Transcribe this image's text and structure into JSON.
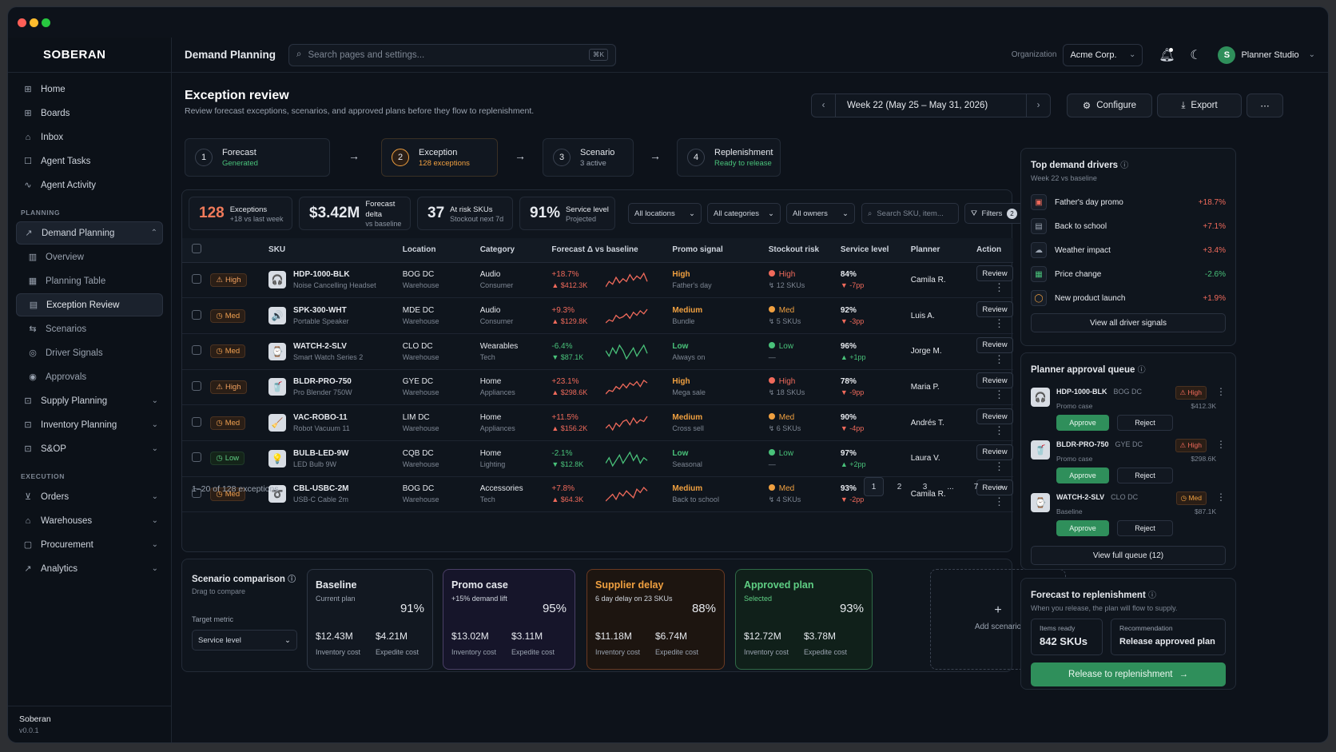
{
  "app": {
    "brand": "SOBERAN",
    "footer_name": "Soberan",
    "footer_version": "v0.0.1"
  },
  "nav": {
    "home": "Home",
    "boards": "Boards",
    "inbox": "Inbox",
    "agent_tasks": "Agent Tasks",
    "agent_activity": "Agent Activity",
    "planning_section": "PLANNING",
    "demand_planning": "Demand Planning",
    "overview": "Overview",
    "planning_table": "Planning Table",
    "exception_review": "Exception Review",
    "scenarios": "Scenarios",
    "driver_signals": "Driver Signals",
    "approvals": "Approvals",
    "supply_planning": "Supply Planning",
    "inventory_planning": "Inventory Planning",
    "sop": "S&OP",
    "execution_section": "EXECUTION",
    "orders": "Orders",
    "warehouses": "Warehouses",
    "procurement": "Procurement",
    "analytics": "Analytics"
  },
  "topbar": {
    "title": "Demand Planning",
    "search_placeholder": "Search pages and settings...",
    "search_kbd": "⌘K",
    "org_label": "Organization",
    "org_value": "Acme Corp.",
    "avatar_letter": "S",
    "user": "Planner Studio"
  },
  "page": {
    "title": "Exception review",
    "subtitle": "Review forecast exceptions, scenarios, and approved plans before they flow to replenishment.",
    "week": "Week 22 (May 25 – May 31, 2026)",
    "configure": "Configure",
    "export": "Export"
  },
  "steps": [
    {
      "num": "1",
      "title": "Forecast",
      "status": "Generated",
      "color": "#49c27a"
    },
    {
      "num": "2",
      "title": "Exception",
      "status": "128 exceptions",
      "color": "#f0a040"
    },
    {
      "num": "3",
      "title": "Scenario",
      "status": "3 active",
      "color": "#9aa3b0"
    },
    {
      "num": "4",
      "title": "Replenishment",
      "status": "Ready to release",
      "color": "#49c27a"
    }
  ],
  "kpis": [
    {
      "value": "128",
      "label": "Exceptions",
      "sub": "+18 vs last week",
      "color": "#f07a5a"
    },
    {
      "value": "$3.42M",
      "label": "Forecast delta",
      "sub": "vs baseline",
      "color": "#ffffff"
    },
    {
      "value": "37",
      "label": "At risk SKUs",
      "sub": "Stockout next 7d",
      "color": "#ffffff"
    },
    {
      "value": "91%",
      "label": "Service level",
      "sub": "Projected",
      "color": "#ffffff"
    }
  ],
  "filters": {
    "locations": "All locations",
    "categories": "All categories",
    "owners": "All owners",
    "search_placeholder": "Search SKU, item...",
    "filters_label": "Filters",
    "filters_count": "2"
  },
  "table": {
    "headers": {
      "sku": "SKU",
      "location": "Location",
      "category": "Category",
      "forecast": "Forecast Δ vs baseline",
      "promo": "Promo signal",
      "stockout": "Stockout risk",
      "service": "Service level",
      "planner": "Planner",
      "action": "Action"
    },
    "rows": [
      {
        "priority": "High",
        "ptype": "h",
        "icon": "headphones-icon",
        "glyph": "🎧",
        "sku": "HDP-1000-BLK",
        "name": "Noise Cancelling Headset",
        "loc": "BOG DC",
        "loc_sub": "Warehouse",
        "cat": "Audio",
        "cat_sub": "Consumer",
        "pct": "+18.7%",
        "amt": "▲ $412.3K",
        "dir": "pos",
        "promo": "High",
        "promo_sub": "Father's day",
        "promo_color": "#f0a040",
        "risk": "High",
        "risk_sub": "↯ 12 SKUs",
        "risk_color": "#f06a5b",
        "svc": "84%",
        "svc_sub": "▼ -7pp",
        "svc_dir": "red",
        "planner": "Camila R.",
        "spark": [
          5,
          9,
          7,
          12,
          8,
          11,
          9,
          14,
          10,
          13,
          11,
          15,
          9
        ]
      },
      {
        "priority": "Med",
        "ptype": "m",
        "icon": "speaker-icon",
        "glyph": "🔊",
        "sku": "SPK-300-WHT",
        "name": "Portable Speaker",
        "loc": "MDE DC",
        "loc_sub": "Warehouse",
        "cat": "Audio",
        "cat_sub": "Consumer",
        "pct": "+9.3%",
        "amt": "▲ $129.8K",
        "dir": "pos",
        "promo": "Medium",
        "promo_sub": "Bundle",
        "promo_color": "#f0a040",
        "risk": "Med",
        "risk_sub": "↯ 5 SKUs",
        "risk_color": "#f0a040",
        "svc": "92%",
        "svc_sub": "▼ -3pp",
        "svc_dir": "red",
        "planner": "Luis A.",
        "spark": [
          6,
          8,
          7,
          11,
          9,
          10,
          12,
          9,
          13,
          11,
          14,
          12,
          15
        ]
      },
      {
        "priority": "Med",
        "ptype": "m",
        "icon": "watch-icon",
        "glyph": "⌚",
        "sku": "WATCH-2-SLV",
        "name": "Smart Watch Series 2",
        "loc": "CLO DC",
        "loc_sub": "Warehouse",
        "cat": "Wearables",
        "cat_sub": "Tech",
        "pct": "-6.4%",
        "amt": "▼ $87.1K",
        "dir": "neg",
        "promo": "Low",
        "promo_sub": "Always on",
        "promo_color": "#49c27a",
        "risk": "Low",
        "risk_sub": "—",
        "risk_color": "#49c27a",
        "svc": "96%",
        "svc_sub": "▲ +1pp",
        "svc_dir": "grn",
        "planner": "Jorge M.",
        "spark": [
          10,
          8,
          11,
          9,
          12,
          10,
          7,
          9,
          11,
          8,
          10,
          12,
          9
        ]
      },
      {
        "priority": "High",
        "ptype": "h",
        "icon": "blender-icon",
        "glyph": "🥤",
        "sku": "BLDR-PRO-750",
        "name": "Pro Blender 750W",
        "loc": "GYE DC",
        "loc_sub": "Warehouse",
        "cat": "Home",
        "cat_sub": "Appliances",
        "pct": "+23.1%",
        "amt": "▲ $298.6K",
        "dir": "pos",
        "promo": "High",
        "promo_sub": "Mega sale",
        "promo_color": "#f0a040",
        "risk": "High",
        "risk_sub": "↯ 18 SKUs",
        "risk_color": "#f06a5b",
        "svc": "78%",
        "svc_sub": "▼ -9pp",
        "svc_dir": "red",
        "planner": "Maria P.",
        "spark": [
          4,
          7,
          6,
          10,
          8,
          12,
          9,
          13,
          11,
          14,
          10,
          15,
          13
        ]
      },
      {
        "priority": "Med",
        "ptype": "m",
        "icon": "vacuum-icon",
        "glyph": "🧹",
        "sku": "VAC-ROBO-11",
        "name": "Robot Vacuum 11",
        "loc": "LIM DC",
        "loc_sub": "Warehouse",
        "cat": "Home",
        "cat_sub": "Appliances",
        "pct": "+11.5%",
        "amt": "▲ $156.2K",
        "dir": "pos",
        "promo": "Medium",
        "promo_sub": "Cross sell",
        "promo_color": "#f0a040",
        "risk": "Med",
        "risk_sub": "↯ 6 SKUs",
        "risk_color": "#f0a040",
        "svc": "90%",
        "svc_sub": "▼ -4pp",
        "svc_dir": "red",
        "planner": "Andrés T.",
        "spark": [
          7,
          9,
          6,
          10,
          8,
          11,
          12,
          9,
          13,
          10,
          12,
          11,
          14
        ]
      },
      {
        "priority": "Low",
        "ptype": "l",
        "icon": "bulb-icon",
        "glyph": "💡",
        "sku": "BULB-LED-9W",
        "name": "LED Bulb 9W",
        "loc": "CQB DC",
        "loc_sub": "Warehouse",
        "cat": "Home",
        "cat_sub": "Lighting",
        "pct": "-2.1%",
        "amt": "▼ $12.8K",
        "dir": "neg",
        "promo": "Low",
        "promo_sub": "Seasonal",
        "promo_color": "#49c27a",
        "risk": "Low",
        "risk_sub": "—",
        "risk_color": "#49c27a",
        "svc": "97%",
        "svc_sub": "▲ +2pp",
        "svc_dir": "grn",
        "planner": "Laura V.",
        "spark": [
          9,
          11,
          8,
          10,
          12,
          9,
          11,
          13,
          10,
          12,
          9,
          11,
          10
        ]
      },
      {
        "priority": "Med",
        "ptype": "m",
        "icon": "cable-icon",
        "glyph": "➰",
        "sku": "CBL-USBC-2M",
        "name": "USB-C Cable 2m",
        "loc": "BOG DC",
        "loc_sub": "Warehouse",
        "cat": "Accessories",
        "cat_sub": "Tech",
        "pct": "+7.8%",
        "amt": "▲ $64.3K",
        "dir": "pos",
        "promo": "Medium",
        "promo_sub": "Back to school",
        "promo_color": "#f0a040",
        "risk": "Med",
        "risk_sub": "↯ 4 SKUs",
        "risk_color": "#f0a040",
        "svc": "93%",
        "svc_sub": "▼ -2pp",
        "svc_dir": "red",
        "planner": "Camila R.",
        "spark": [
          6,
          8,
          10,
          7,
          11,
          9,
          12,
          10,
          8,
          13,
          11,
          14,
          12
        ]
      }
    ],
    "review_label": "Review",
    "count_text": "1–20 of 128 exceptions",
    "pages": [
      "1",
      "2",
      "3",
      "...",
      "7"
    ]
  },
  "scenarios": {
    "title": "Scenario comparison",
    "hint": "Drag to compare",
    "metric_label": "Target metric",
    "metric_value": "Service level",
    "cards": [
      {
        "name": "Baseline",
        "desc": "Current plan",
        "pct": "91%",
        "inv": "$12.43M",
        "exp": "$4.21M",
        "border": "#2e3745",
        "bg": "#121821",
        "name_color": "#e6e9ee",
        "desc_color": "#9aa3b0"
      },
      {
        "name": "Promo case",
        "desc": "+15% demand lift",
        "pct": "95%",
        "inv": "$13.02M",
        "exp": "$3.11M",
        "border": "#4a3f66",
        "bg": "#16152a",
        "name_color": "#e6e9ee",
        "desc_color": "#cfd5de"
      },
      {
        "name": "Supplier delay",
        "desc": "6 day delay on 23 SKUs",
        "pct": "88%",
        "inv": "$11.18M",
        "exp": "$6.74M",
        "border": "#6a3a22",
        "bg": "#1d1510",
        "name_color": "#f0a040",
        "desc_color": "#cfd5de"
      },
      {
        "name": "Approved plan",
        "desc": "Selected",
        "pct": "93%",
        "inv": "$12.72M",
        "exp": "$3.78M",
        "border": "#2f6a47",
        "bg": "#10201a",
        "name_color": "#5fcf84",
        "desc_color": "#5fcf84"
      }
    ],
    "inv_label": "Inventory cost",
    "exp_label": "Expedite cost",
    "add": "Add scenario"
  },
  "drivers": {
    "title": "Top demand drivers",
    "sub": "Week 22 vs baseline",
    "view_all": "View all driver signals",
    "items": [
      {
        "icon": "calendar-icon",
        "glyph": "▣",
        "label": "Father's day promo",
        "value": "+18.7%",
        "color": "#f06a5b",
        "icolor": "#f06a5b"
      },
      {
        "icon": "book-icon",
        "glyph": "▤",
        "label": "Back to school",
        "value": "+7.1%",
        "color": "#f06a5b",
        "icolor": "#9aa3b0"
      },
      {
        "icon": "cloud-icon",
        "glyph": "☁",
        "label": "Weather impact",
        "value": "+3.4%",
        "color": "#f06a5b",
        "icolor": "#9aa3b0"
      },
      {
        "icon": "price-tag-icon",
        "glyph": "▦",
        "label": "Price change",
        "value": "-2.6%",
        "color": "#49c27a",
        "icolor": "#49c27a"
      },
      {
        "icon": "launch-icon",
        "glyph": "◯",
        "label": "New product launch",
        "value": "+1.9%",
        "color": "#f06a5b",
        "icolor": "#f0a040"
      }
    ]
  },
  "queue": {
    "title": "Planner approval queue",
    "view_full": "View full queue (12)",
    "approve": "Approve",
    "reject": "Reject",
    "items": [
      {
        "icon": "headphones-icon",
        "glyph": "🎧",
        "sku": "HDP-1000-BLK",
        "loc": "BOG DC",
        "case": "Promo case",
        "amt": "$412.3K",
        "pri": "⚠ High",
        "pri_color": "#f06a5b"
      },
      {
        "icon": "blender-icon",
        "glyph": "🥤",
        "sku": "BLDR-PRO-750",
        "loc": "GYE DC",
        "case": "Promo case",
        "amt": "$298.6K",
        "pri": "⚠ High",
        "pri_color": "#f06a5b"
      },
      {
        "icon": "watch-icon",
        "glyph": "⌚",
        "sku": "WATCH-2-SLV",
        "loc": "CLO DC",
        "case": "Baseline",
        "amt": "$87.1K",
        "pri": "◷ Med",
        "pri_color": "#f0a040"
      }
    ]
  },
  "release": {
    "title": "Forecast to replenishment",
    "sub": "When you release, the plan will flow to supply.",
    "items_label": "Items ready",
    "items_value": "842 SKUs",
    "rec_label": "Recommendation",
    "rec_value": "Release approved plan",
    "button": "Release to replenishment"
  }
}
